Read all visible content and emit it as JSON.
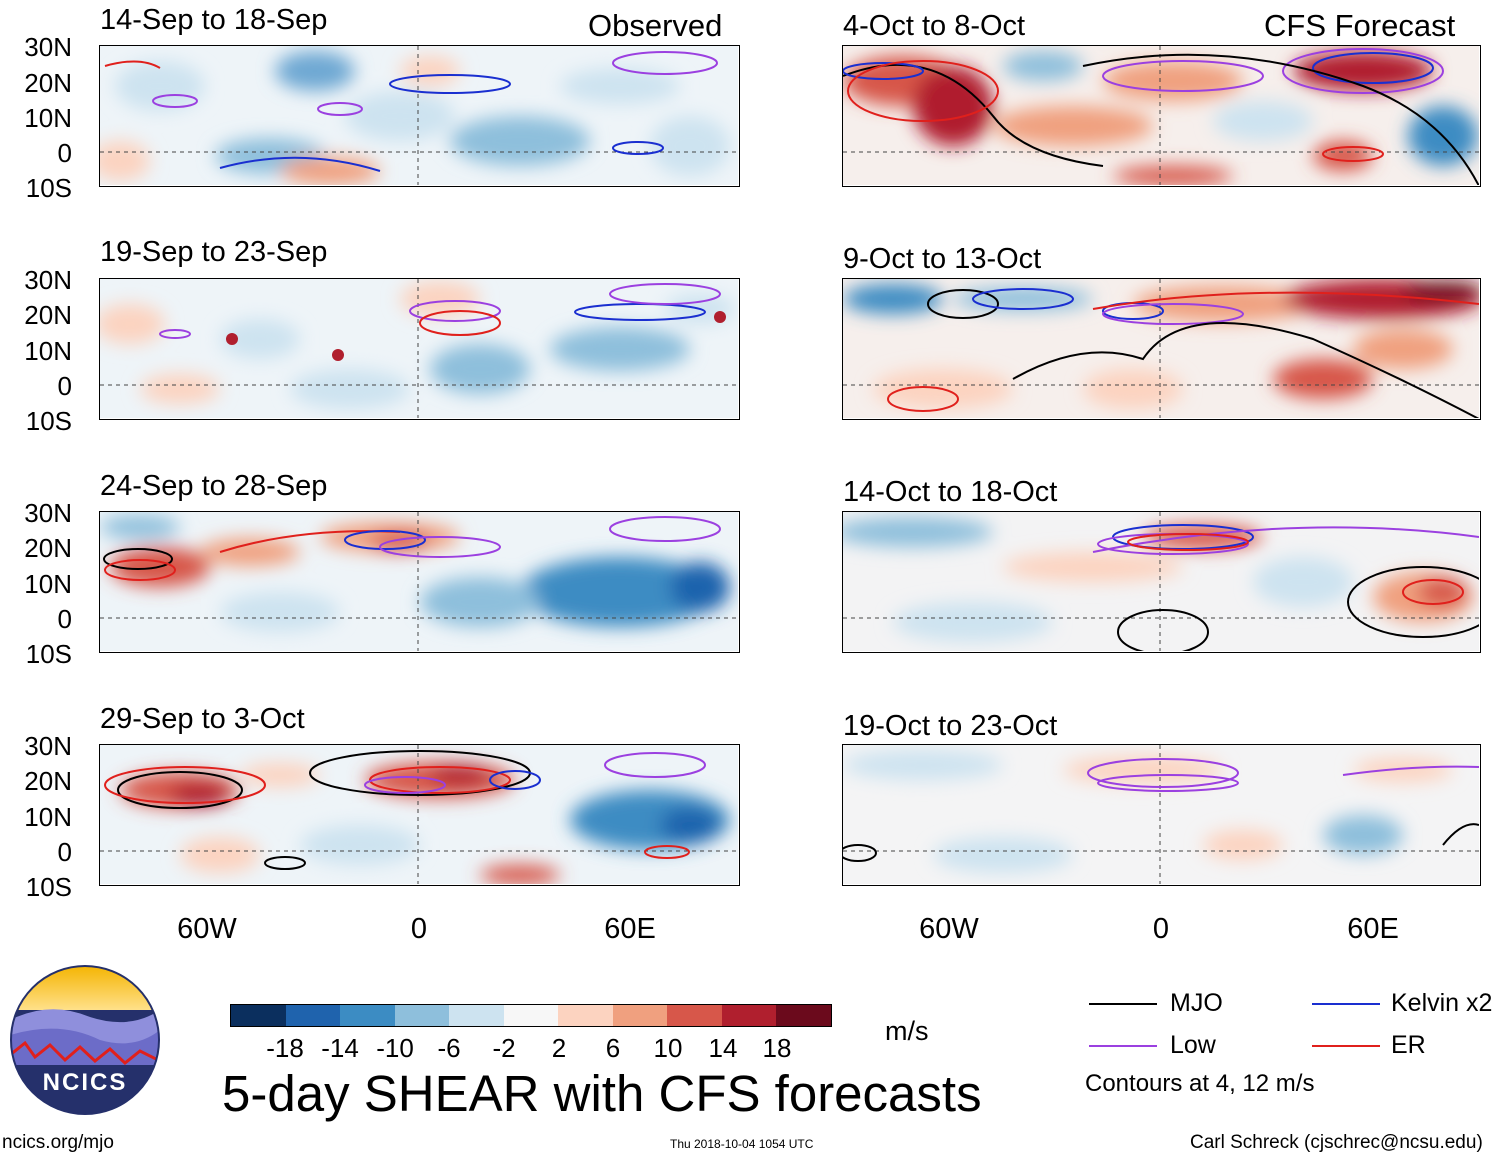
{
  "headers": {
    "observed": "Observed",
    "forecast": "CFS Forecast"
  },
  "lat_labels": [
    "30N",
    "20N",
    "10N",
    "0",
    "10S"
  ],
  "lon_labels": [
    "60W",
    "0",
    "60E"
  ],
  "panels": {
    "observed": [
      {
        "title": "14-Sep to 18-Sep"
      },
      {
        "title": "19-Sep to 23-Sep"
      },
      {
        "title": "24-Sep to 28-Sep"
      },
      {
        "title": "29-Sep to 3-Oct"
      }
    ],
    "forecast": [
      {
        "title": "4-Oct to 8-Oct"
      },
      {
        "title": "9-Oct to 13-Oct"
      },
      {
        "title": "14-Oct to 18-Oct"
      },
      {
        "title": "19-Oct to 23-Oct"
      }
    ]
  },
  "colorbar": {
    "labels": [
      "-18",
      "-14",
      "-10",
      "-6",
      "-2",
      "2",
      "6",
      "10",
      "14",
      "18"
    ],
    "colors": [
      "#0b2f5e",
      "#1f63ad",
      "#3c8cc3",
      "#8ebfdc",
      "#cde3f0",
      "#f7f7f7",
      "#fcd3c0",
      "#f0a07f",
      "#d7574a",
      "#b01f2e",
      "#6b0a1c"
    ],
    "units": "m/s"
  },
  "legend": {
    "items": [
      {
        "label": "MJO",
        "color": "#000000"
      },
      {
        "label": "Kelvin x2",
        "color": "#1a2fd0"
      },
      {
        "label": "Low",
        "color": "#9b40e0"
      },
      {
        "label": "ER",
        "color": "#e0201c"
      }
    ],
    "note": "Contours at 4, 12 m/s"
  },
  "title": "5-day SHEAR with CFS forecasts",
  "logo_text": "NCICS",
  "footer": {
    "url": "ncics.org/mjo",
    "timestamp": "Thu 2018-10-04 1054 UTC",
    "credit": "Carl Schreck (cjschrec@ncsu.edu)"
  }
}
